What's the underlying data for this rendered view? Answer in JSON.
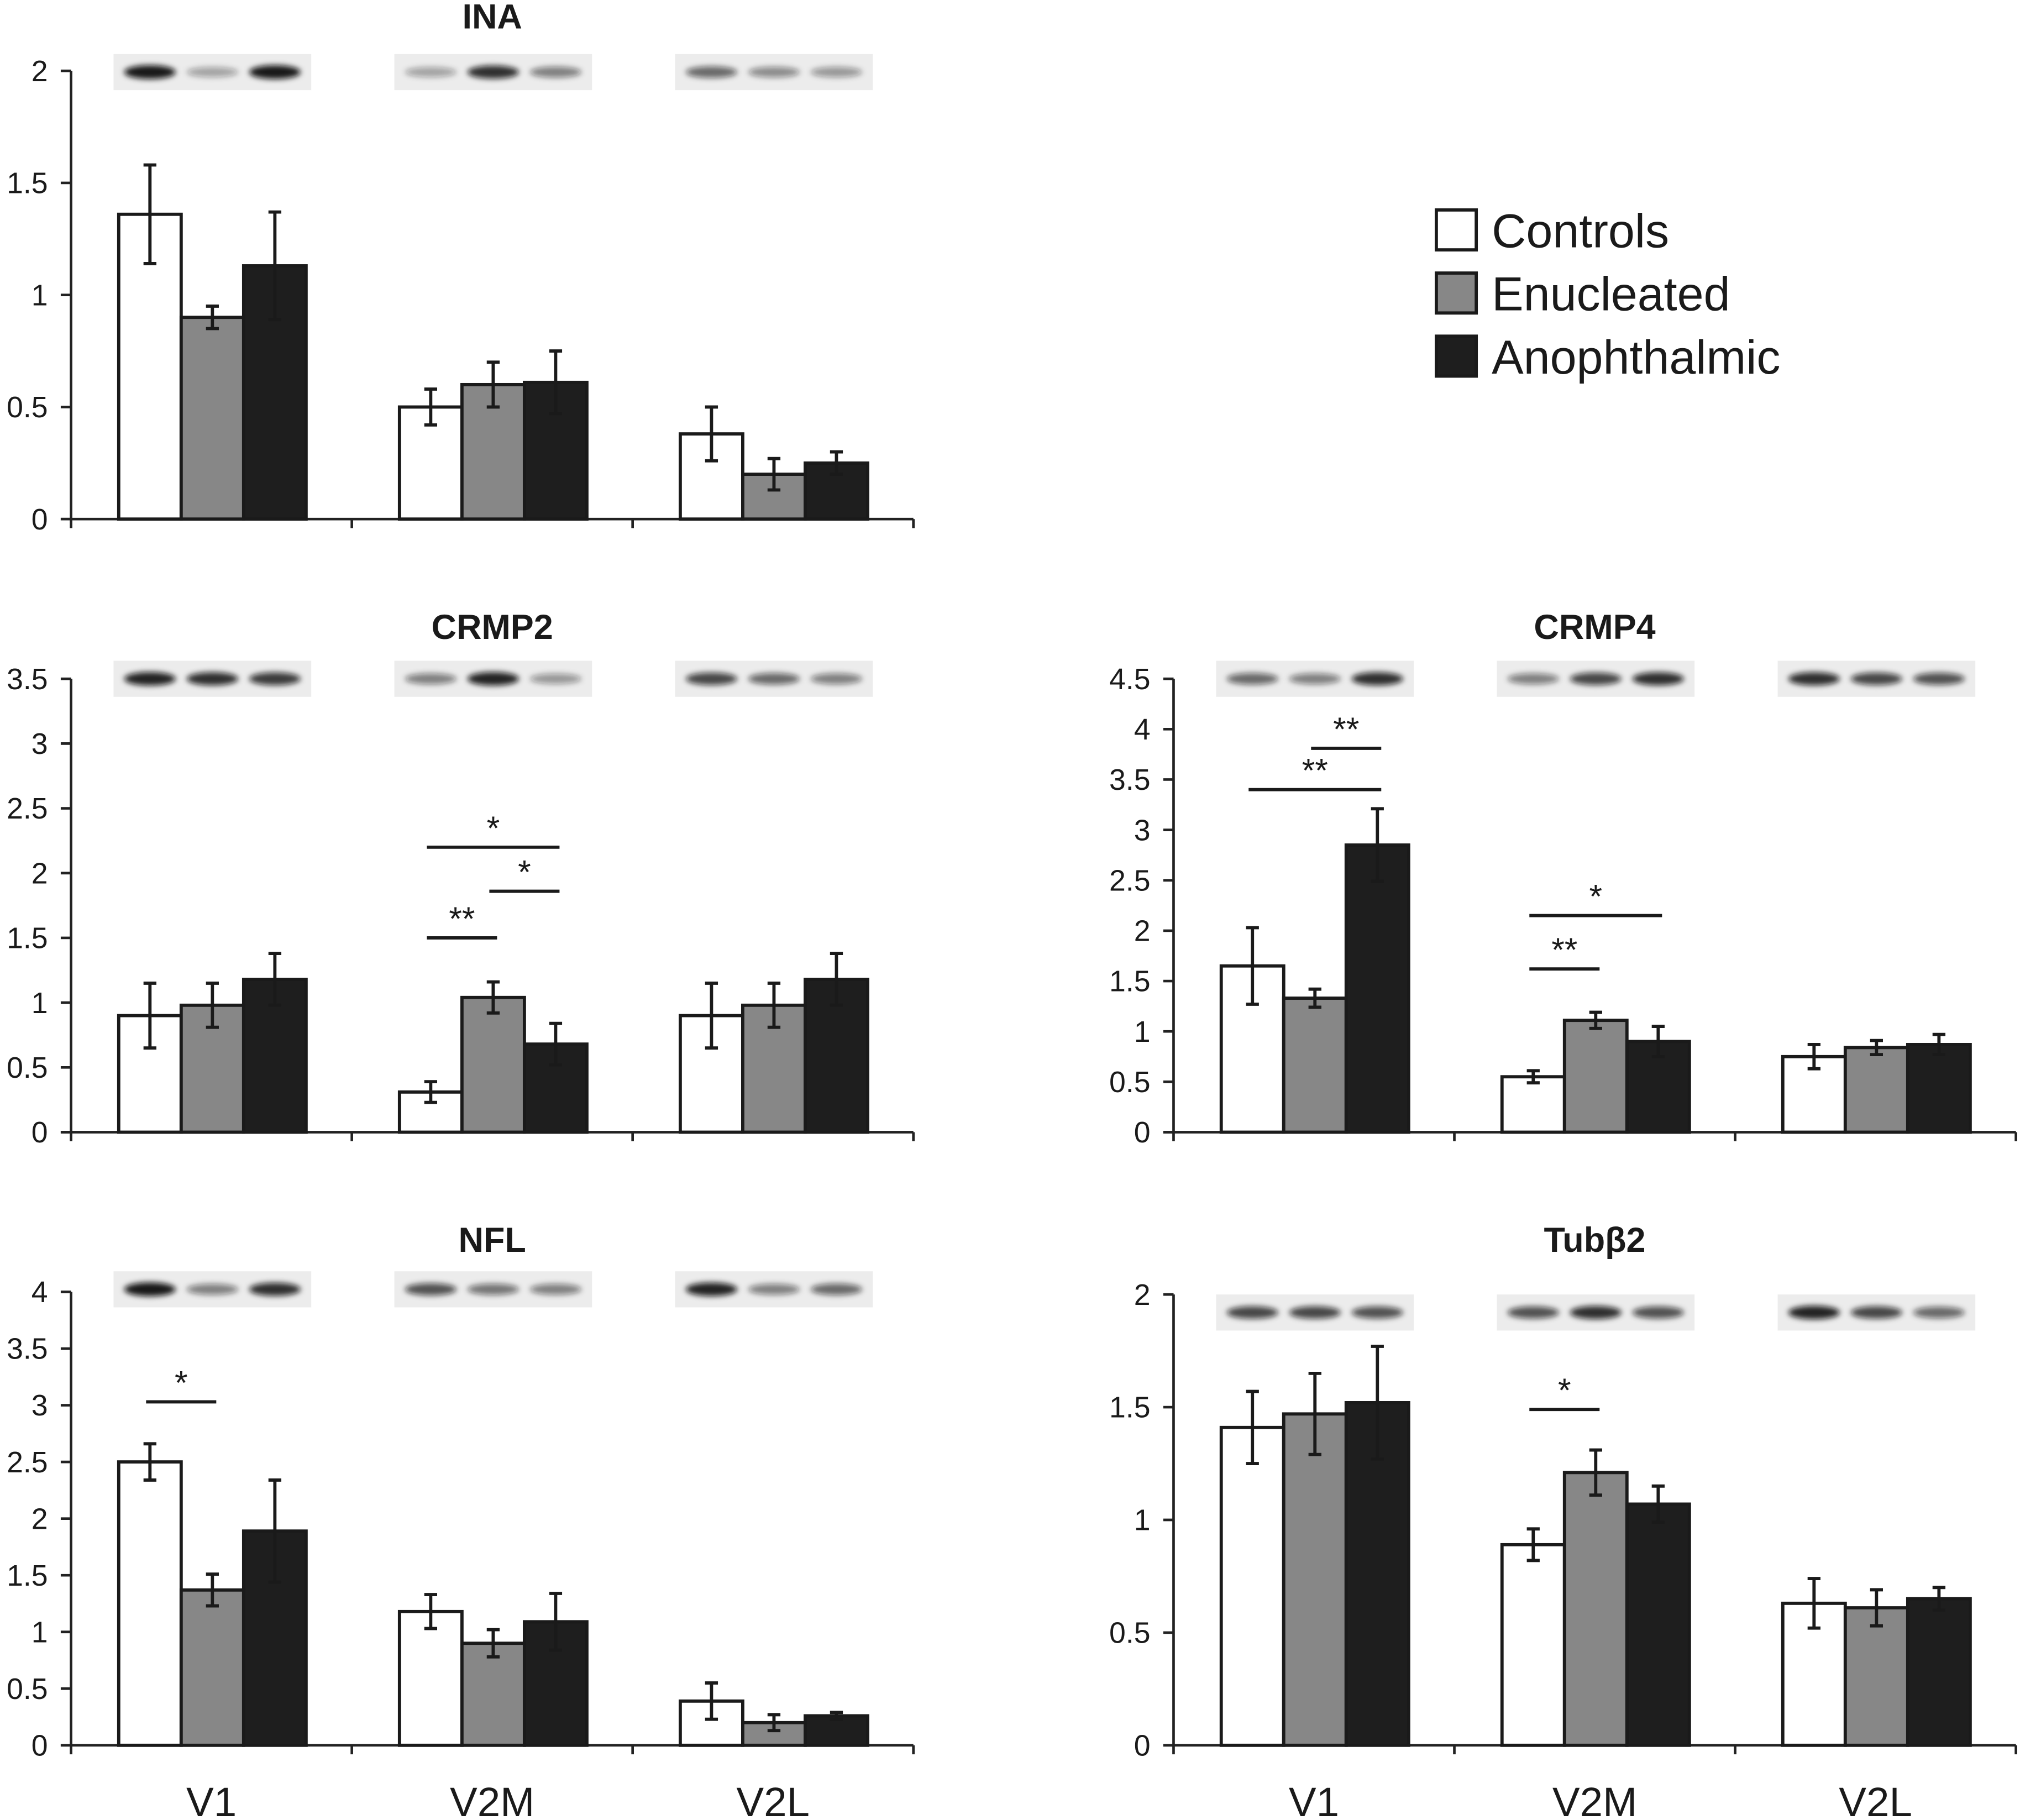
{
  "chart_data": [
    {
      "type": "bar",
      "title": "INA",
      "ylim": [
        0,
        2
      ],
      "ticks": [
        "0",
        "0.5",
        "1",
        "1.5",
        "2"
      ],
      "tick_values": [
        0,
        0.5,
        1,
        1.5,
        2
      ],
      "categories": [
        "V1",
        "V2M",
        "V2L"
      ],
      "show_xlabels": false,
      "series": [
        {
          "name": "Controls",
          "values": [
            1.36,
            0.5,
            0.38
          ],
          "errors": [
            0.22,
            0.08,
            0.12
          ]
        },
        {
          "name": "Enucleated",
          "values": [
            0.9,
            0.6,
            0.2
          ],
          "errors": [
            0.05,
            0.1,
            0.07
          ]
        },
        {
          "name": "Anophthalmic",
          "values": [
            1.13,
            0.61,
            0.25
          ],
          "errors": [
            0.24,
            0.14,
            0.05
          ]
        }
      ],
      "significance": []
    },
    {
      "type": "bar",
      "title": "CRMP2",
      "ylim": [
        0,
        3.5
      ],
      "ticks": [
        "0",
        "0.5",
        "1",
        "1.5",
        "2",
        "2.5",
        "3",
        "3.5"
      ],
      "tick_values": [
        0,
        0.5,
        1,
        1.5,
        2,
        2.5,
        3,
        3.5
      ],
      "categories": [
        "V1",
        "V2M",
        "V2L"
      ],
      "show_xlabels": false,
      "series": [
        {
          "name": "Controls",
          "values": [
            0.9,
            0.31,
            0.9
          ],
          "errors": [
            0.25,
            0.08,
            0.25
          ]
        },
        {
          "name": "Enucleated",
          "values": [
            0.98,
            1.04,
            0.98
          ],
          "errors": [
            0.17,
            0.12,
            0.17
          ]
        },
        {
          "name": "Anophthalmic",
          "values": [
            1.18,
            0.68,
            1.18
          ],
          "errors": [
            0.2,
            0.16,
            0.2
          ]
        }
      ],
      "significance": [
        {
          "category": "V2M",
          "from": "Controls",
          "to": "Anophthalmic",
          "label": "*",
          "y": 2.2
        },
        {
          "category": "V2M",
          "from": "Enucleated",
          "to": "Anophthalmic",
          "label": "*",
          "y": 1.86
        },
        {
          "category": "V2M",
          "from": "Controls",
          "to": "Enucleated",
          "label": "**",
          "y": 1.5
        }
      ]
    },
    {
      "type": "bar",
      "title": "CRMP4",
      "ylim": [
        0,
        4.5
      ],
      "ticks": [
        "0",
        "0.5",
        "1",
        "1.5",
        "2",
        "2.5",
        "3",
        "3.5",
        "4",
        "4.5"
      ],
      "tick_values": [
        0,
        0.5,
        1,
        1.5,
        2,
        2.5,
        3,
        3.5,
        4,
        4.5
      ],
      "categories": [
        "V1",
        "V2M",
        "V2L"
      ],
      "show_xlabels": false,
      "series": [
        {
          "name": "Controls",
          "values": [
            1.65,
            0.55,
            0.75
          ],
          "errors": [
            0.38,
            0.06,
            0.12
          ]
        },
        {
          "name": "Enucleated",
          "values": [
            1.33,
            1.11,
            0.84
          ],
          "errors": [
            0.09,
            0.08,
            0.07
          ]
        },
        {
          "name": "Anophthalmic",
          "values": [
            2.85,
            0.9,
            0.87
          ],
          "errors": [
            0.36,
            0.15,
            0.1
          ]
        }
      ],
      "significance": [
        {
          "category": "V1",
          "from": "Enucleated",
          "to": "Anophthalmic",
          "label": "**",
          "y": 3.81
        },
        {
          "category": "V1",
          "from": "Controls",
          "to": "Anophthalmic",
          "label": "**",
          "y": 3.4
        },
        {
          "category": "V2M",
          "from": "Controls",
          "to": "Anophthalmic",
          "label": "*",
          "y": 2.15
        },
        {
          "category": "V2M",
          "from": "Controls",
          "to": "Enucleated",
          "label": "**",
          "y": 1.62
        }
      ]
    },
    {
      "type": "bar",
      "title": "NFL",
      "ylim": [
        0,
        4
      ],
      "ticks": [
        "0",
        "0.5",
        "1",
        "1.5",
        "2",
        "2.5",
        "3",
        "3.5",
        "4"
      ],
      "tick_values": [
        0,
        0.5,
        1,
        1.5,
        2,
        2.5,
        3,
        3.5,
        4
      ],
      "categories": [
        "V1",
        "V2M",
        "V2L"
      ],
      "show_xlabels": true,
      "series": [
        {
          "name": "Controls",
          "values": [
            2.5,
            1.18,
            0.39
          ],
          "errors": [
            0.16,
            0.15,
            0.16
          ]
        },
        {
          "name": "Enucleated",
          "values": [
            1.37,
            0.9,
            0.2
          ],
          "errors": [
            0.14,
            0.12,
            0.07
          ]
        },
        {
          "name": "Anophthalmic",
          "values": [
            1.89,
            1.09,
            0.26
          ],
          "errors": [
            0.45,
            0.25,
            0.03
          ]
        }
      ],
      "significance": [
        {
          "category": "V1",
          "from": "Controls",
          "to": "Enucleated",
          "label": "*",
          "y": 3.03
        }
      ]
    },
    {
      "type": "bar",
      "title": "Tubβ2",
      "ylim": [
        0,
        2
      ],
      "ticks": [
        "0",
        "0.5",
        "1",
        "1.5",
        "2"
      ],
      "tick_values": [
        0,
        0.5,
        1,
        1.5,
        2
      ],
      "categories": [
        "V1",
        "V2M",
        "V2L"
      ],
      "show_xlabels": true,
      "series": [
        {
          "name": "Controls",
          "values": [
            1.41,
            0.89,
            0.63
          ],
          "errors": [
            0.16,
            0.07,
            0.11
          ]
        },
        {
          "name": "Enucleated",
          "values": [
            1.47,
            1.21,
            0.61
          ],
          "errors": [
            0.18,
            0.1,
            0.08
          ]
        },
        {
          "name": "Anophthalmic",
          "values": [
            1.52,
            1.07,
            0.65
          ],
          "errors": [
            0.25,
            0.08,
            0.05
          ]
        }
      ],
      "significance": [
        {
          "category": "V2M",
          "from": "Controls",
          "to": "Enucleated",
          "label": "*",
          "y": 1.49
        }
      ]
    }
  ],
  "legend": {
    "placement": "top-right",
    "items": [
      {
        "label": "Controls",
        "color": "#ffffff"
      },
      {
        "label": "Enucleated",
        "color": "#878787"
      },
      {
        "label": "Anophthalmic",
        "color": "#1e1e1e"
      }
    ]
  }
}
